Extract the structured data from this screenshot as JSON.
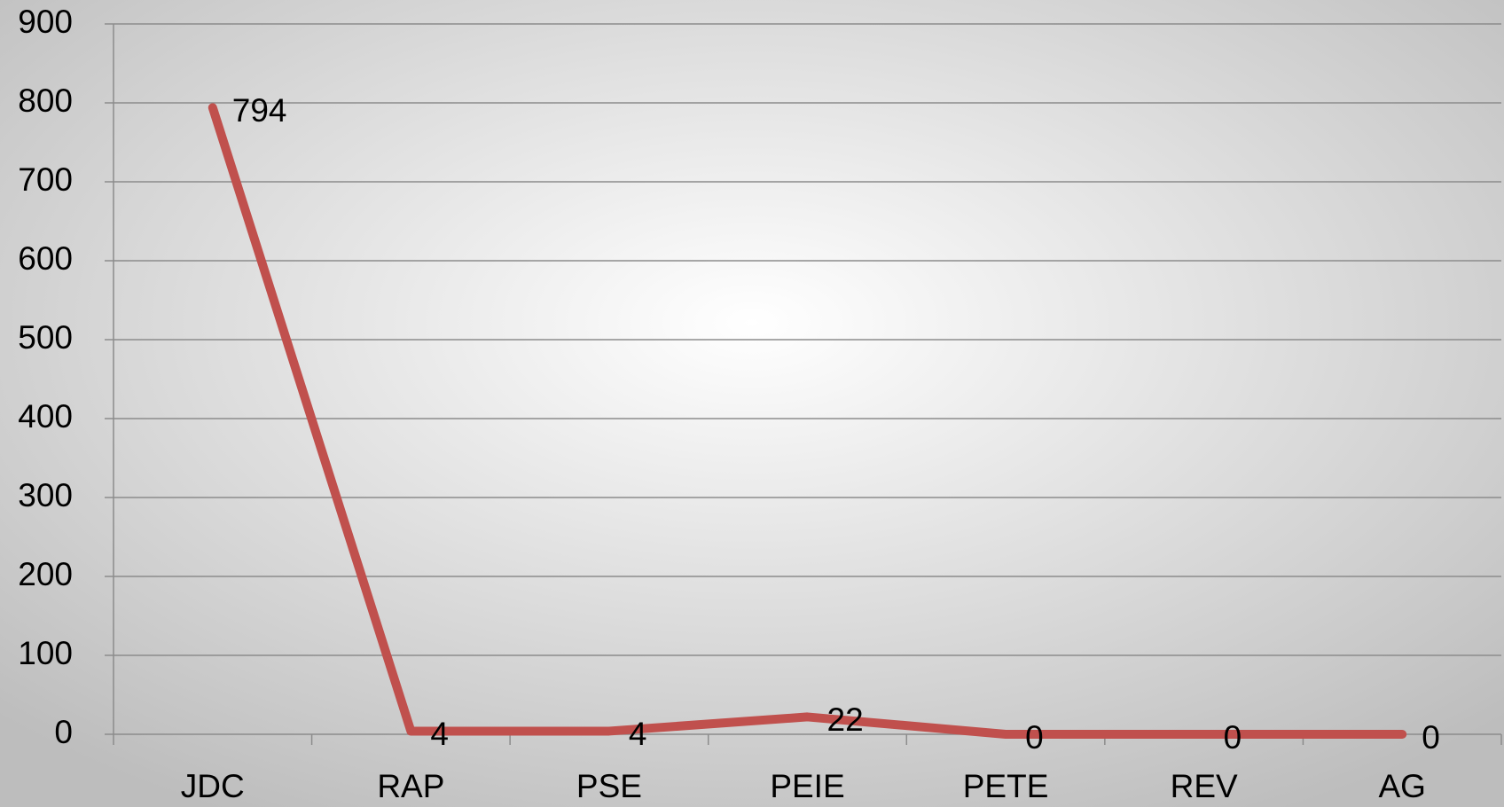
{
  "chart_data": {
    "type": "line",
    "categories": [
      "JDC",
      "RAP",
      "PSE",
      "PEIE",
      "PETE",
      "REV",
      "AG"
    ],
    "series": [
      {
        "name": null,
        "color": "#c0504d",
        "values": [
          794,
          4,
          4,
          22,
          0,
          0,
          0
        ]
      }
    ],
    "ylim": [
      0,
      900
    ],
    "yticks": [
      0,
      100,
      200,
      300,
      400,
      500,
      600,
      700,
      800,
      900
    ],
    "grid": true,
    "data_labels": true
  }
}
